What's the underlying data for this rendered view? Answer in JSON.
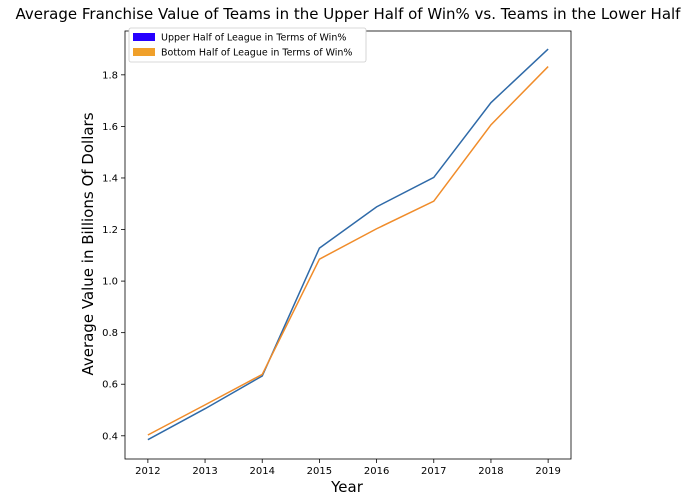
{
  "chart_data": {
    "type": "line",
    "title": "Average Franchise Value of Teams in the Upper Half of Win% vs. Teams in the Lower Half",
    "xlabel": "Year",
    "ylabel": "Average Value in Billions Of Dollars",
    "x": [
      2012,
      2013,
      2014,
      2015,
      2016,
      2017,
      2018,
      2019
    ],
    "xlim": [
      2011.6,
      2019.4
    ],
    "ylim": [
      0.31,
      1.97
    ],
    "yticks": [
      0.4,
      0.6,
      0.8,
      1.0,
      1.2,
      1.4,
      1.6,
      1.8
    ],
    "ytick_labels": [
      "0.4",
      "0.6",
      "0.8",
      "1.0",
      "1.2",
      "1.4",
      "1.6",
      "1.8"
    ],
    "xtick_labels": [
      "2012",
      "2013",
      "2014",
      "2015",
      "2016",
      "2017",
      "2018",
      "2019"
    ],
    "grid": false,
    "legend_position": "top-left",
    "series": [
      {
        "name": "Upper Half of League in Terms of Win%",
        "values": [
          0.385,
          0.505,
          0.632,
          1.128,
          1.288,
          1.402,
          1.692,
          1.9
        ],
        "line_color": "#2f6aa8",
        "legend_color": "#2600ff"
      },
      {
        "name": "Bottom Half of League in Terms of Win%",
        "values": [
          0.403,
          0.52,
          0.638,
          1.085,
          1.203,
          1.31,
          1.606,
          1.832
        ],
        "line_color": "#f08c2a",
        "legend_color": "#f0a02a"
      }
    ]
  }
}
